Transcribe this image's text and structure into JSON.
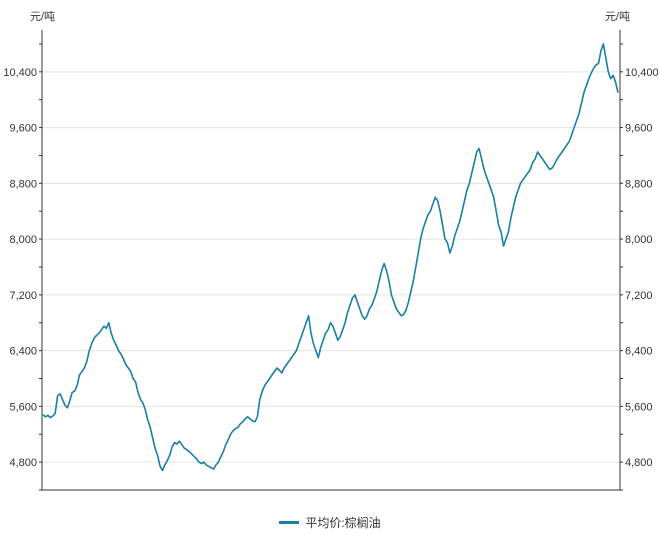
{
  "chart_data": {
    "type": "line",
    "y_unit_left": "元/吨",
    "y_unit_right": "元/吨",
    "ylim": [
      4400,
      11000
    ],
    "yticks": [
      4800,
      5600,
      6400,
      7200,
      8000,
      8800,
      9600,
      10400
    ],
    "ytick_labels": [
      "4,800",
      "5,600",
      "6,400",
      "7,200",
      "8,000",
      "8,800",
      "9,600",
      "10,400"
    ],
    "grid": true,
    "legend_position": "bottom-center",
    "series": [
      {
        "name": "平均价:棕榈油",
        "color": "#1a7fa6",
        "values": [
          5480,
          5450,
          5470,
          5440,
          5460,
          5500,
          5750,
          5780,
          5700,
          5620,
          5580,
          5680,
          5800,
          5820,
          5900,
          6050,
          6100,
          6150,
          6250,
          6400,
          6500,
          6580,
          6620,
          6650,
          6700,
          6750,
          6720,
          6800,
          6650,
          6550,
          6480,
          6400,
          6350,
          6280,
          6200,
          6150,
          6100,
          6000,
          5950,
          5800,
          5700,
          5650,
          5550,
          5400,
          5300,
          5150,
          5000,
          4900,
          4750,
          4680,
          4760,
          4820,
          4900,
          5020,
          5080,
          5060,
          5100,
          5050,
          5000,
          4980,
          4950,
          4920,
          4880,
          4850,
          4800,
          4780,
          4800,
          4760,
          4740,
          4720,
          4700,
          4760,
          4800,
          4880,
          4950,
          5050,
          5120,
          5200,
          5250,
          5280,
          5300,
          5350,
          5380,
          5420,
          5450,
          5420,
          5390,
          5380,
          5450,
          5700,
          5820,
          5900,
          5950,
          6000,
          6050,
          6100,
          6150,
          6120,
          6080,
          6150,
          6200,
          6250,
          6300,
          6350,
          6400,
          6500,
          6600,
          6700,
          6800,
          6900,
          6650,
          6500,
          6400,
          6300,
          6450,
          6550,
          6650,
          6700,
          6800,
          6750,
          6650,
          6550,
          6600,
          6700,
          6800,
          6950,
          7050,
          7150,
          7200,
          7100,
          7000,
          6900,
          6850,
          6900,
          7000,
          7050,
          7150,
          7250,
          7400,
          7550,
          7650,
          7550,
          7400,
          7200,
          7100,
          7000,
          6950,
          6900,
          6920,
          6980,
          7100,
          7250,
          7400,
          7600,
          7800,
          8000,
          8150,
          8250,
          8350,
          8400,
          8500,
          8600,
          8550,
          8400,
          8200,
          8000,
          7950,
          7800,
          7900,
          8050,
          8150,
          8250,
          8400,
          8550,
          8700,
          8800,
          8950,
          9100,
          9250,
          9300,
          9150,
          9000,
          8900,
          8800,
          8700,
          8600,
          8400,
          8200,
          8100,
          7900,
          8000,
          8100,
          8300,
          8450,
          8600,
          8700,
          8800,
          8850,
          8900,
          8950,
          9000,
          9100,
          9150,
          9250,
          9200,
          9150,
          9100,
          9050,
          9000,
          9020,
          9080,
          9150,
          9200,
          9250,
          9300,
          9350,
          9400,
          9500,
          9600,
          9700,
          9800,
          9950,
          10100,
          10200,
          10300,
          10380,
          10450,
          10500,
          10520,
          10700,
          10800,
          10600,
          10400,
          10300,
          10350,
          10250,
          10100
        ]
      }
    ]
  }
}
